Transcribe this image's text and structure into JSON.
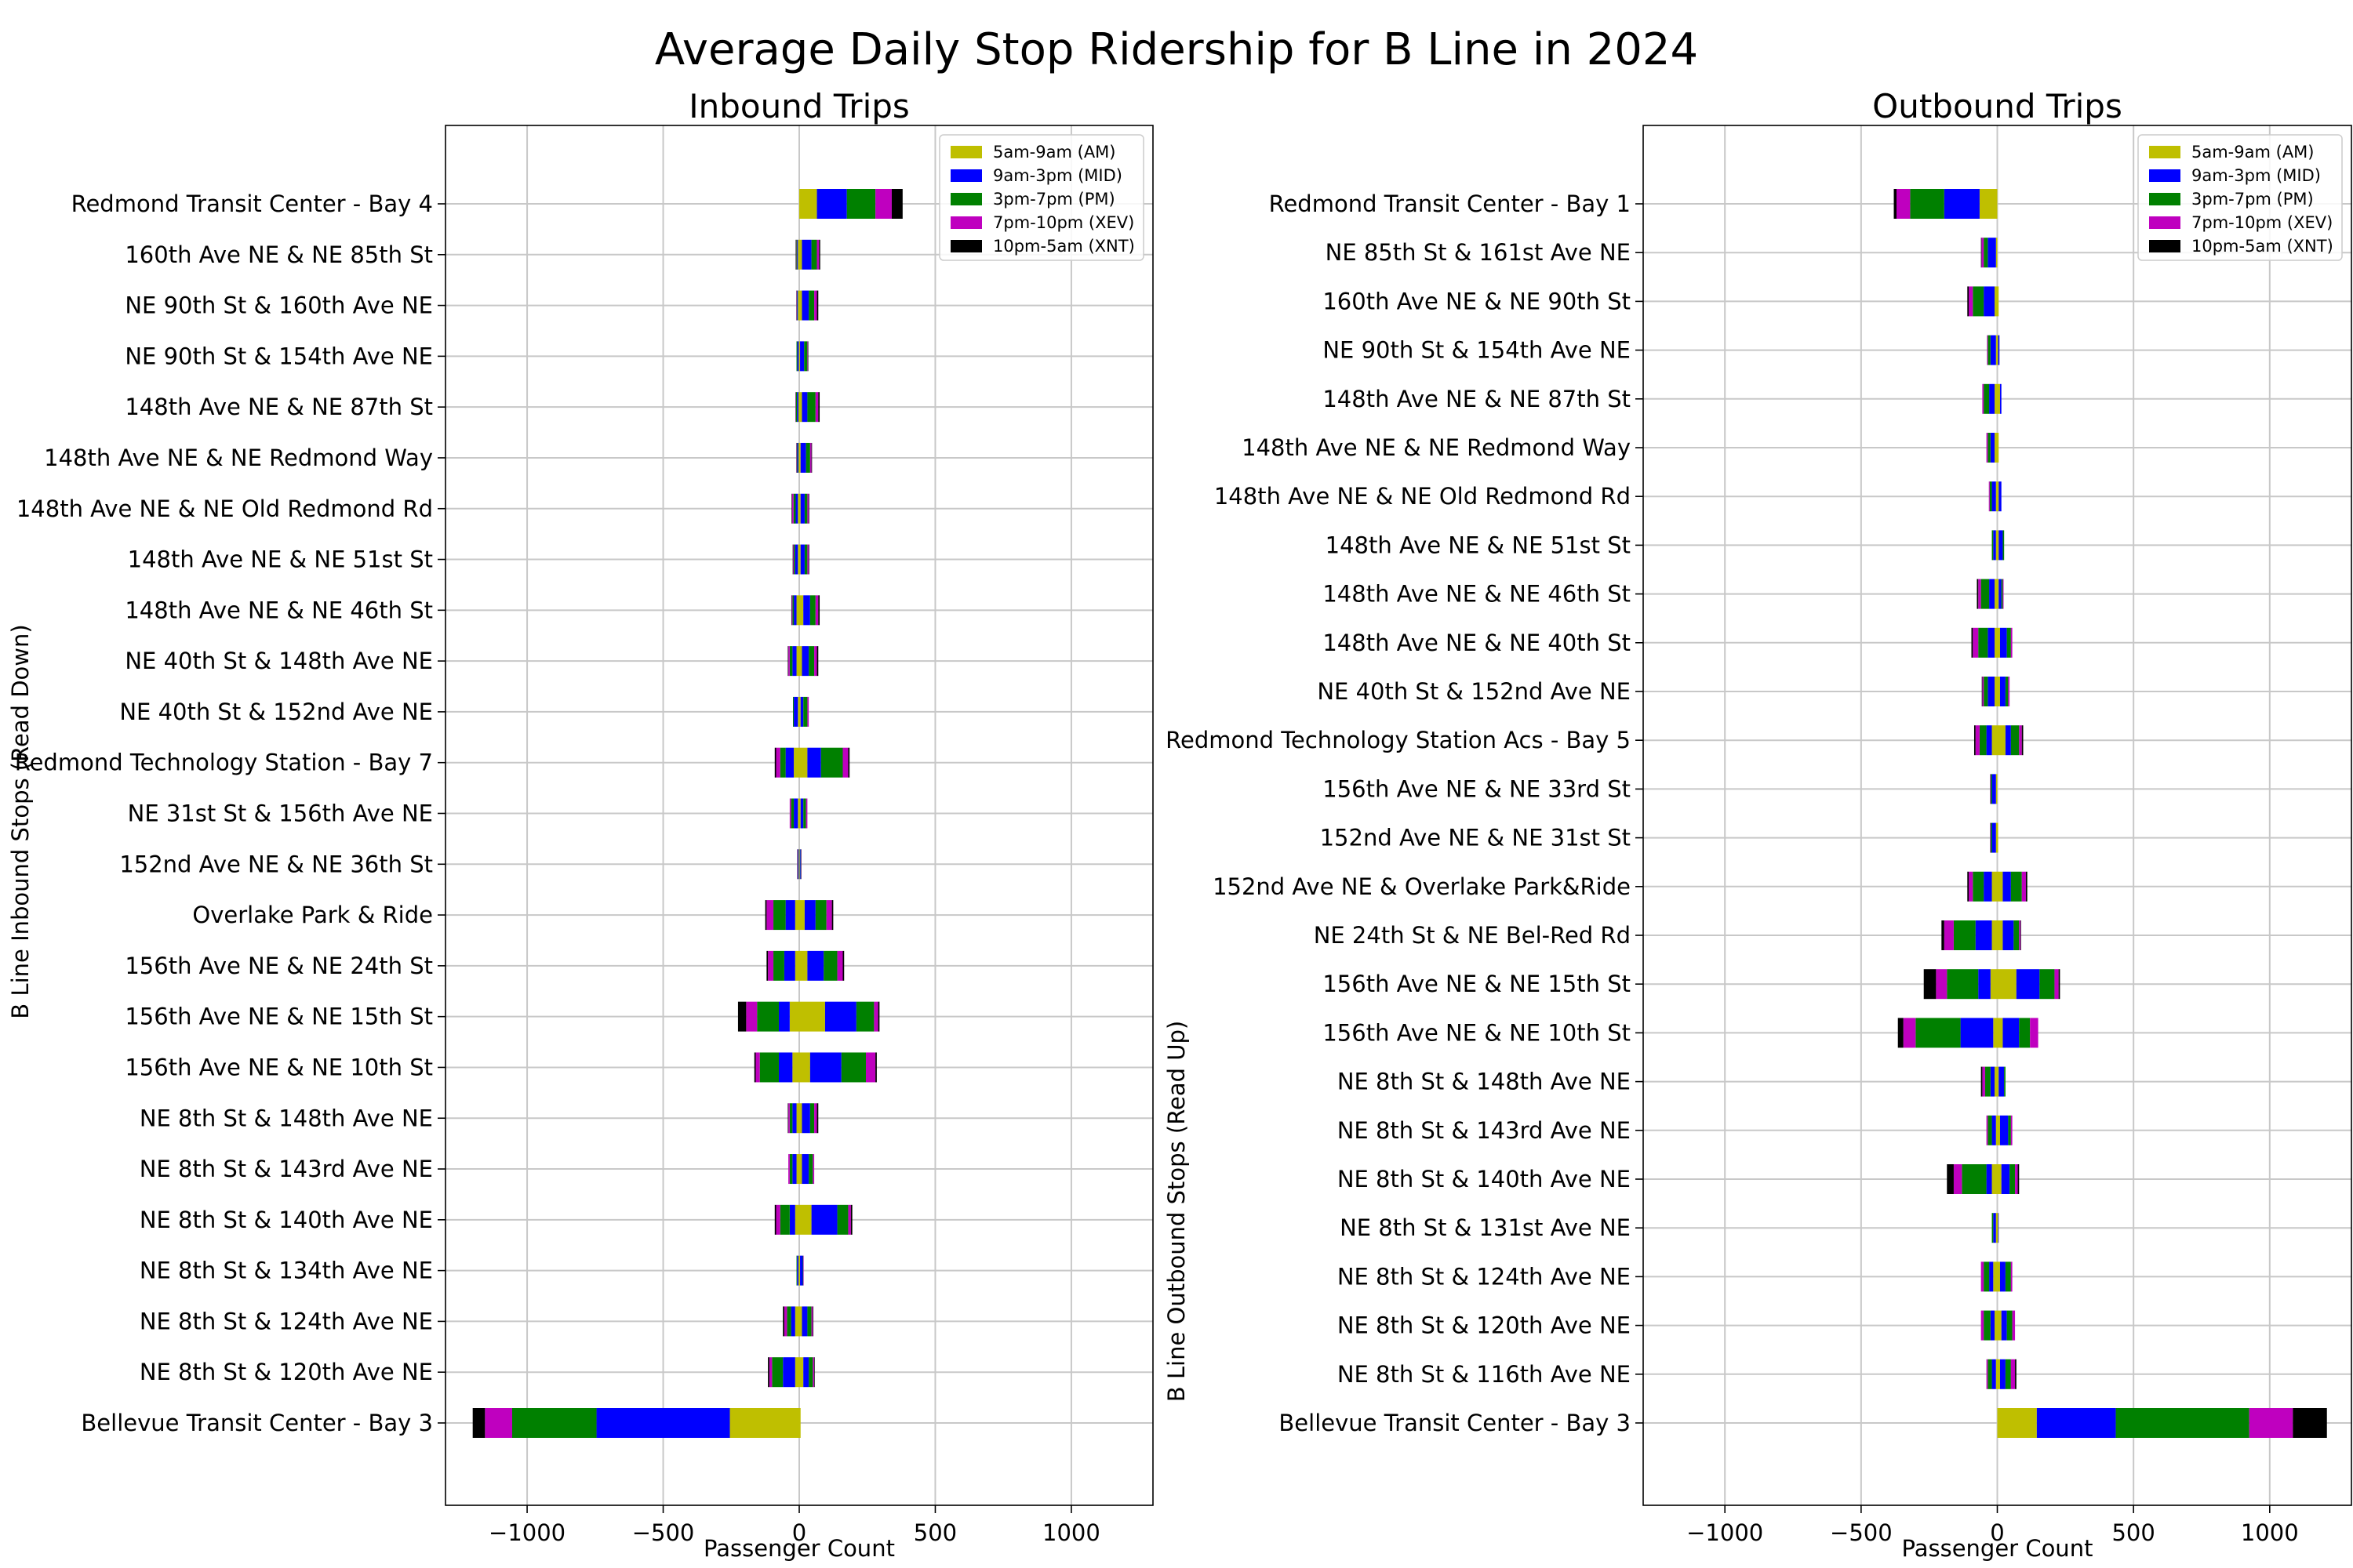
{
  "chart_data": {
    "title": "Average Daily Stop Ridership for B Line in 2024",
    "periods": [
      {
        "name": "5am-9am (AM)",
        "color": "#bfbf00"
      },
      {
        "name": "9am-3pm (MID)",
        "color": "#0000ff"
      },
      {
        "name": "3pm-7pm (PM)",
        "color": "#008000"
      },
      {
        "name": "7pm-10pm (XEV)",
        "color": "#bf00bf"
      },
      {
        "name": "10pm-5am (XNT)",
        "color": "#000000"
      }
    ],
    "charts": [
      {
        "type": "bar",
        "orientation": "horizontal",
        "stacking": "diverging: boardings positive, alightings negative",
        "title": "Inbound Trips",
        "xlabel": "Passenger Count",
        "ylabel": "B Line Inbound Stops (Read Down)",
        "xlim": [
          -1300,
          1300
        ],
        "xticks": [
          -1000,
          -500,
          0,
          500,
          1000
        ],
        "grid": true,
        "legend_position": "upper right",
        "stops": [
          {
            "name": "Redmond Transit Center - Bay 4",
            "on": [
              65,
              110,
              105,
              60,
              40
            ],
            "off": [
              0,
              0,
              0,
              0,
              0
            ]
          },
          {
            "name": "160th Ave NE & NE 85th St",
            "on": [
              10,
              35,
              20,
              8,
              4
            ],
            "off": [
              5,
              3,
              3,
              1,
              1
            ]
          },
          {
            "name": "NE 90th St & 160th Ave NE",
            "on": [
              10,
              25,
              20,
              10,
              5
            ],
            "off": [
              5,
              3,
              2,
              1,
              0
            ]
          },
          {
            "name": "NE 90th St & 154th Ave NE",
            "on": [
              3,
              15,
              12,
              2,
              1
            ],
            "off": [
              2,
              5,
              3,
              0,
              0
            ]
          },
          {
            "name": "148th Ave NE & NE 87th St",
            "on": [
              10,
              20,
              30,
              10,
              5
            ],
            "off": [
              3,
              5,
              5,
              1,
              0
            ]
          },
          {
            "name": "148th Ave NE & NE Redmond Way",
            "on": [
              5,
              20,
              15,
              5,
              2
            ],
            "off": [
              3,
              4,
              3,
              1,
              0
            ]
          },
          {
            "name": "148th Ave NE & NE Old Redmond Rd",
            "on": [
              5,
              15,
              10,
              5,
              2
            ],
            "off": [
              5,
              8,
              8,
              5,
              2
            ]
          },
          {
            "name": "148th Ave NE & NE 51st St",
            "on": [
              5,
              15,
              10,
              5,
              2
            ],
            "off": [
              5,
              10,
              5,
              3,
              1
            ]
          },
          {
            "name": "148th Ave NE & NE 46th St",
            "on": [
              15,
              25,
              20,
              10,
              5
            ],
            "off": [
              10,
              10,
              5,
              3,
              1
            ]
          },
          {
            "name": "NE 40th St & 148th Ave NE",
            "on": [
              10,
              25,
              20,
              10,
              5
            ],
            "off": [
              10,
              15,
              10,
              5,
              2
            ]
          },
          {
            "name": "NE 40th St & 152nd Ave NE",
            "on": [
              5,
              10,
              15,
              5,
              0
            ],
            "off": [
              5,
              15,
              3,
              0,
              0
            ]
          },
          {
            "name": "Redmond Technology Station - Bay 7",
            "on": [
              30,
              50,
              80,
              20,
              5
            ],
            "off": [
              20,
              30,
              20,
              15,
              5
            ]
          },
          {
            "name": "NE 31st St & 156th Ave NE",
            "on": [
              5,
              10,
              10,
              5,
              0
            ],
            "off": [
              5,
              15,
              10,
              5,
              0
            ]
          },
          {
            "name": "152nd Ave NE & NE 36th St",
            "on": [
              2,
              3,
              2,
              1,
              0
            ],
            "off": [
              2,
              3,
              2,
              1,
              0
            ]
          },
          {
            "name": "Overlake Park & Ride",
            "on": [
              20,
              40,
              40,
              20,
              5
            ],
            "off": [
              15,
              35,
              45,
              25,
              5
            ]
          },
          {
            "name": "156th Ave NE & NE 24th St",
            "on": [
              30,
              60,
              50,
              20,
              5
            ],
            "off": [
              15,
              40,
              40,
              20,
              5
            ]
          },
          {
            "name": "156th Ave NE & NE 15th St",
            "on": [
              95,
              115,
              65,
              15,
              5
            ],
            "off": [
              35,
              40,
              80,
              40,
              30
            ]
          },
          {
            "name": "156th Ave NE & NE 10th St",
            "on": [
              40,
              115,
              90,
              35,
              5
            ],
            "off": [
              25,
              50,
              70,
              15,
              5
            ]
          },
          {
            "name": "NE 8th St & 148th Ave NE",
            "on": [
              10,
              30,
              15,
              10,
              5
            ],
            "off": [
              10,
              15,
              10,
              5,
              2
            ]
          },
          {
            "name": "NE 8th St & 143rd Ave NE",
            "on": [
              10,
              25,
              15,
              5,
              0
            ],
            "off": [
              10,
              15,
              10,
              5,
              0
            ]
          },
          {
            "name": "NE 8th St & 140th Ave NE",
            "on": [
              45,
              95,
              40,
              10,
              5
            ],
            "off": [
              15,
              20,
              35,
              15,
              5
            ]
          },
          {
            "name": "NE 8th St & 134th Ave NE",
            "on": [
              3,
              10,
              2,
              1,
              0
            ],
            "off": [
              3,
              5,
              2,
              0,
              0
            ]
          },
          {
            "name": "NE 8th St & 124th Ave NE",
            "on": [
              10,
              20,
              15,
              5,
              2
            ],
            "off": [
              15,
              15,
              15,
              10,
              5
            ]
          },
          {
            "name": "NE 8th St & 120th Ave NE",
            "on": [
              15,
              20,
              15,
              5,
              2
            ],
            "off": [
              15,
              45,
              40,
              10,
              5
            ]
          },
          {
            "name": "Bellevue Transit Center - Bay 3",
            "on": [
              5,
              0,
              0,
              0,
              0
            ],
            "off": [
              255,
              490,
              310,
              100,
              45
            ]
          }
        ]
      },
      {
        "type": "bar",
        "orientation": "horizontal",
        "stacking": "diverging: boardings positive, alightings negative",
        "title": "Outbound Trips",
        "xlabel": "Passenger Count",
        "ylabel": "B Line Outbound Stops (Read Up)",
        "xlim": [
          -1300,
          1300
        ],
        "xticks": [
          -1000,
          -500,
          0,
          500,
          1000
        ],
        "grid": true,
        "legend_position": "upper right",
        "stops": [
          {
            "name": "Redmond Transit Center - Bay 1",
            "on": [
              0,
              0,
              0,
              0,
              0
            ],
            "off": [
              65,
              130,
              125,
              50,
              10
            ]
          },
          {
            "name": "NE 85th St & 161st Ave NE",
            "on": [
              0,
              0,
              0,
              0,
              0
            ],
            "off": [
              5,
              30,
              15,
              8,
              2
            ]
          },
          {
            "name": "160th Ave NE & NE 90th St",
            "on": [
              5,
              0,
              0,
              0,
              0
            ],
            "off": [
              10,
              40,
              40,
              15,
              5
            ]
          },
          {
            "name": "NE 90th St & 154th Ave NE",
            "on": [
              3,
              5,
              0,
              0,
              0
            ],
            "off": [
              5,
              20,
              10,
              3,
              0
            ]
          },
          {
            "name": "148th Ave NE & NE 87th St",
            "on": [
              10,
              5,
              0,
              0,
              0
            ],
            "off": [
              10,
              20,
              20,
              5,
              0
            ]
          },
          {
            "name": "148th Ave NE & NE Redmond Way",
            "on": [
              5,
              0,
              0,
              0,
              0
            ],
            "off": [
              10,
              15,
              10,
              5,
              0
            ]
          },
          {
            "name": "148th Ave NE & NE Old Redmond Rd",
            "on": [
              5,
              10,
              0,
              0,
              0
            ],
            "off": [
              5,
              15,
              8,
              3,
              0
            ]
          },
          {
            "name": "148th Ave NE & NE 51st St",
            "on": [
              5,
              15,
              5,
              0,
              0
            ],
            "off": [
              5,
              10,
              5,
              0,
              0
            ]
          },
          {
            "name": "148th Ave NE & NE 46th St",
            "on": [
              5,
              10,
              5,
              3,
              0
            ],
            "off": [
              10,
              20,
              30,
              10,
              5
            ]
          },
          {
            "name": "148th Ave NE & NE 40th St",
            "on": [
              10,
              25,
              15,
              5,
              0
            ],
            "off": [
              10,
              25,
              35,
              20,
              5
            ]
          },
          {
            "name": "NE 40th St & 152nd Ave NE",
            "on": [
              10,
              20,
              10,
              5,
              0
            ],
            "off": [
              10,
              25,
              15,
              5,
              2
            ]
          },
          {
            "name": "Redmond Technology Station Acs - Bay 5",
            "on": [
              30,
              20,
              30,
              10,
              5
            ],
            "off": [
              20,
              20,
              25,
              15,
              5
            ]
          },
          {
            "name": "156th Ave NE & NE 33rd St",
            "on": [
              0,
              0,
              0,
              0,
              0
            ],
            "off": [
              5,
              15,
              5,
              2,
              0
            ]
          },
          {
            "name": "152nd Ave NE & NE 31st St",
            "on": [
              3,
              0,
              0,
              0,
              0
            ],
            "off": [
              5,
              15,
              5,
              2,
              0
            ]
          },
          {
            "name": "152nd Ave NE & Overlake Park&Ride",
            "on": [
              20,
              30,
              40,
              15,
              5
            ],
            "off": [
              20,
              30,
              40,
              15,
              5
            ]
          },
          {
            "name": "NE 24th St & NE Bel-Red Rd",
            "on": [
              20,
              40,
              20,
              5,
              2
            ],
            "off": [
              20,
              60,
              80,
              35,
              10
            ]
          },
          {
            "name": "156th Ave NE & NE 15th St",
            "on": [
              70,
              85,
              55,
              15,
              5
            ],
            "off": [
              25,
              45,
              115,
              40,
              45
            ]
          },
          {
            "name": "156th Ave NE & NE 10th St",
            "on": [
              20,
              60,
              40,
              30,
              0
            ],
            "off": [
              15,
              120,
              165,
              45,
              20
            ]
          },
          {
            "name": "NE 8th St & 148th Ave NE",
            "on": [
              5,
              20,
              5,
              0,
              0
            ],
            "off": [
              10,
              15,
              20,
              10,
              5
            ]
          },
          {
            "name": "NE 8th St & 143rd Ave NE",
            "on": [
              10,
              30,
              10,
              5,
              0
            ],
            "off": [
              5,
              15,
              15,
              5,
              0
            ]
          },
          {
            "name": "NE 8th St & 140th Ave NE",
            "on": [
              15,
              30,
              20,
              10,
              5
            ],
            "off": [
              20,
              20,
              90,
              30,
              25
            ]
          },
          {
            "name": "NE 8th St & 131st Ave NE",
            "on": [
              3,
              2,
              0,
              0,
              0
            ],
            "off": [
              5,
              10,
              5,
              0,
              0
            ]
          },
          {
            "name": "NE 8th St & 124th Ave NE",
            "on": [
              10,
              20,
              20,
              5,
              0
            ],
            "off": [
              15,
              15,
              20,
              10,
              0
            ]
          },
          {
            "name": "NE 8th St & 120th Ave NE",
            "on": [
              15,
              20,
              20,
              10,
              0
            ],
            "off": [
              10,
              15,
              25,
              10,
              0
            ]
          },
          {
            "name": "NE 8th St & 116th Ave NE",
            "on": [
              10,
              20,
              20,
              15,
              5
            ],
            "off": [
              5,
              15,
              15,
              5,
              0
            ]
          },
          {
            "name": "Bellevue Transit Center - Bay 3",
            "on": [
              145,
              290,
              490,
              160,
              125
            ],
            "off": [
              0,
              0,
              0,
              0,
              0
            ]
          }
        ]
      }
    ]
  }
}
